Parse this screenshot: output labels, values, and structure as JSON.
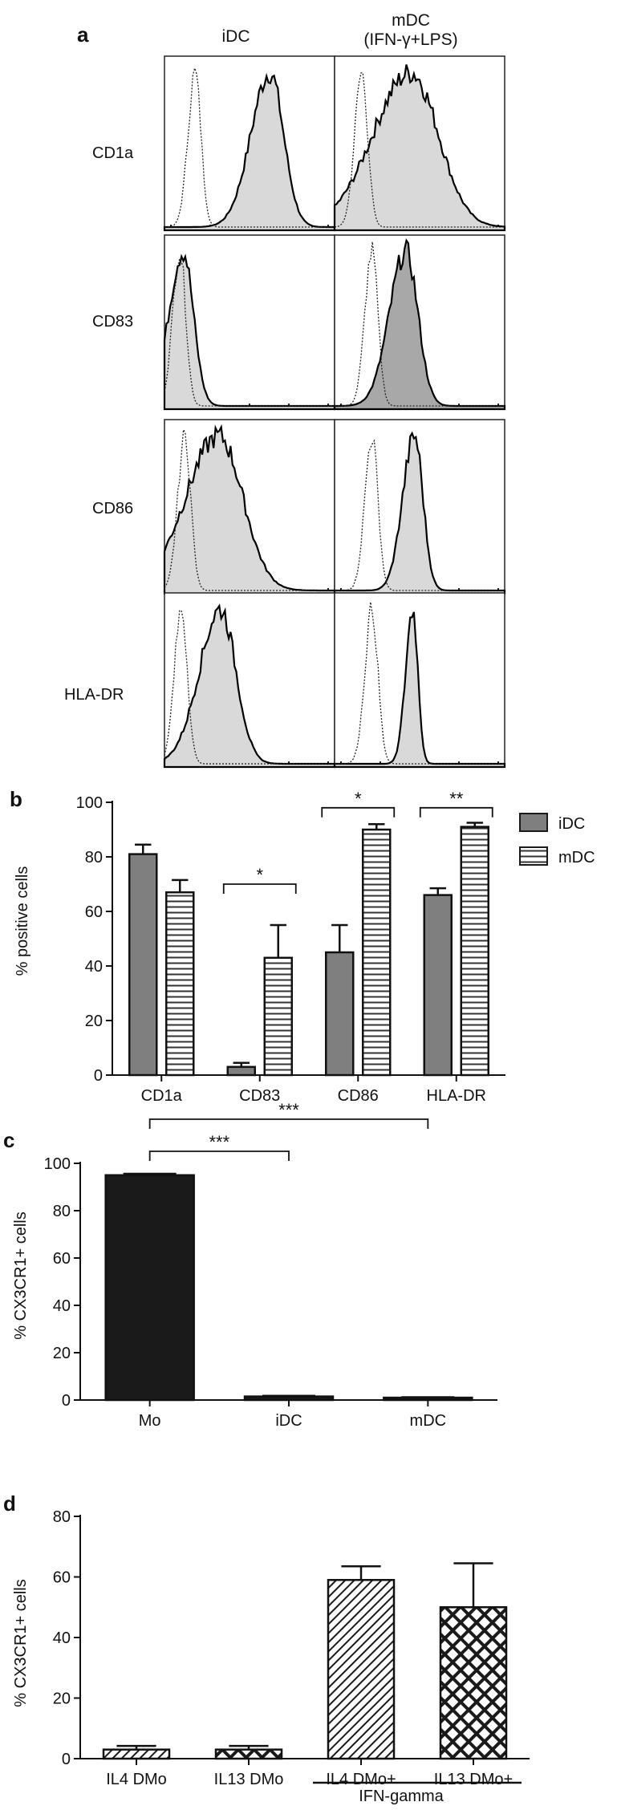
{
  "panel_a": {
    "label": "a",
    "columns": [
      "iDC",
      "mDC\n(IFN-γ+LPS)"
    ],
    "rows": [
      "CD1a",
      "CD83",
      "CD86",
      "HLA-DR"
    ],
    "chart_data": {
      "type": "histogram",
      "note_colors": {
        "stained_fill": "#d9d9d9",
        "stained_fill_dark": "#a8a8a8",
        "isotype": "dotted"
      },
      "cells": [
        {
          "row": "CD1a",
          "col": "iDC",
          "isotype_peak": 0.18,
          "stained_peak": 0.62,
          "stained_width": 0.08,
          "dark_fill": false
        },
        {
          "row": "CD1a",
          "col": "mDC",
          "isotype_peak": 0.16,
          "stained_peak": 0.45,
          "stained_width": 0.16,
          "dark_fill": false
        },
        {
          "row": "CD83",
          "col": "iDC",
          "isotype_peak": 0.09,
          "stained_peak": 0.11,
          "stained_width": 0.06,
          "dark_fill": false
        },
        {
          "row": "CD83",
          "col": "mDC",
          "isotype_peak": 0.22,
          "stained_peak": 0.42,
          "stained_width": 0.07,
          "dark_fill": true
        },
        {
          "row": "CD86",
          "col": "iDC",
          "isotype_peak": 0.12,
          "stained_peak": 0.32,
          "stained_width": 0.14,
          "dark_fill": false
        },
        {
          "row": "CD86",
          "col": "mDC",
          "isotype_peak": 0.22,
          "stained_peak": 0.47,
          "stained_width": 0.05,
          "dark_fill": false
        },
        {
          "row": "HLA-DR",
          "col": "iDC",
          "isotype_peak": 0.1,
          "stained_peak": 0.33,
          "stained_width": 0.09,
          "dark_fill": false
        },
        {
          "row": "HLA-DR",
          "col": "mDC",
          "isotype_peak": 0.22,
          "stained_peak": 0.46,
          "stained_width": 0.03,
          "dark_fill": false
        }
      ]
    }
  },
  "panel_b": {
    "label": "b",
    "chart_data": {
      "type": "bar",
      "ylabel": "% positive cells",
      "ylim": [
        0,
        100
      ],
      "yticks": [
        0,
        20,
        40,
        60,
        80,
        100
      ],
      "categories": [
        "CD1a",
        "CD83",
        "CD86",
        "HLA-DR"
      ],
      "series": [
        {
          "name": "iDC",
          "values": [
            81,
            3,
            45,
            66
          ],
          "errors": [
            3.5,
            1.5,
            10,
            2.5
          ],
          "color": "#7f7f7f",
          "pattern": "solid"
        },
        {
          "name": "mDC",
          "values": [
            67,
            43,
            90,
            91
          ],
          "errors": [
            4.5,
            12,
            2,
            1.5
          ],
          "color": "#ffffff",
          "pattern": "horizontal"
        }
      ],
      "significance": [
        {
          "category": "CD83",
          "label": "*"
        },
        {
          "category": "CD86",
          "label": "*"
        },
        {
          "category": "HLA-DR",
          "label": "**"
        }
      ],
      "legend": "right"
    }
  },
  "panel_c": {
    "label": "c",
    "chart_data": {
      "type": "bar",
      "ylabel": "% CX3CR1+ cells",
      "ylim": [
        0,
        100
      ],
      "yticks": [
        0,
        20,
        40,
        60,
        80,
        100
      ],
      "categories": [
        "Mo",
        "iDC",
        "mDC"
      ],
      "values": [
        95,
        1.5,
        1
      ],
      "errors": [
        0.6,
        0.3,
        0.2
      ],
      "color": "#1a1a1a",
      "significance": [
        {
          "from": "Mo",
          "to": "iDC",
          "label": "***"
        },
        {
          "from": "Mo",
          "to": "mDC",
          "label": "***"
        }
      ]
    }
  },
  "panel_d": {
    "label": "d",
    "chart_data": {
      "type": "bar",
      "ylabel": "% CX3CR1+ cells",
      "ylim": [
        0,
        80
      ],
      "yticks": [
        0,
        20,
        40,
        60,
        80
      ],
      "categories": [
        "IL4 DMo",
        "IL13 DMo",
        "IL4 DMo+",
        "IL13 DMo+"
      ],
      "values": [
        3,
        3,
        59,
        50
      ],
      "errors": [
        1.2,
        1.2,
        4.5,
        14.5
      ],
      "patterns": [
        "diagonal",
        "crosshatch",
        "diagonal",
        "crosshatch"
      ],
      "group_label": "IFN-gamma"
    }
  }
}
